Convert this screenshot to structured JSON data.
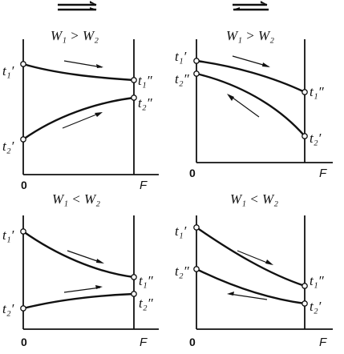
{
  "flow_symbols": {
    "cocurrent": "⇉",
    "countercurrent": "⇄"
  },
  "panels": [
    {
      "condition": "W₁ > W₂",
      "origin_label": "0",
      "axis_label": "F",
      "left_top": "t₁′",
      "left_bottom": "t₂′",
      "right_top": "t₁″",
      "right_bottom": "t₂″"
    },
    {
      "condition": "W₁ > W₂",
      "origin_label": "0",
      "axis_label": "F",
      "left_top": "t₁′",
      "left_bottom": "t₂″",
      "right_top": "t₁″",
      "right_bottom": "t₂′"
    },
    {
      "condition": "W₁ < W₂",
      "origin_label": "0",
      "axis_label": "F",
      "left_top": "t₁′",
      "left_bottom": "t₂′",
      "right_top": "t₁″",
      "right_bottom": "t₂″"
    },
    {
      "condition": "W₁ < W₂",
      "origin_label": "0",
      "axis_label": "F",
      "left_top": "t₁′",
      "left_bottom": "t₂″",
      "right_top": "t₁″",
      "right_bottom": "t₂′"
    }
  ]
}
